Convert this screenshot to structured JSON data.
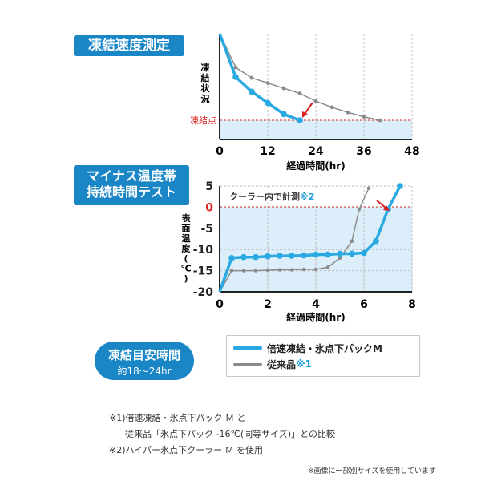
{
  "headings": {
    "chart1": "凍結速度測定",
    "chart2_line1": "マイナス温度帯",
    "chart2_line2": "持続時間テスト"
  },
  "pill": {
    "title": "凍結目安時間",
    "subtitle": "約18〜24hr"
  },
  "legend": {
    "product_m": "倍速凍結・氷点下パックM",
    "conventional": "従来品",
    "conventional_note": "※1"
  },
  "notes": {
    "n1_a": "※1)倍速凍結・氷点下パック Ｍ と",
    "n1_b": "従来品「氷点下パック -16℃(同等サイズ)」との比較",
    "n2": "※2)ハイパー氷点下クーラー Ｍ を使用",
    "small": "※画像に一部別サイズを使用しています"
  },
  "colors": {
    "accent": "#1a86c6",
    "product_line": "#29a9e1",
    "conventional_line": "#8a8a8a",
    "freeze_marker": "#d9211f",
    "band": "#dceef9"
  },
  "chart_data": [
    {
      "type": "line",
      "xlabel": "経過時間(hr)",
      "ylabel": "凍結状況",
      "x_ticks": [
        "0",
        "12",
        "24",
        "36",
        "48"
      ],
      "xlim": [
        0,
        48
      ],
      "freeze_label": "凍結点",
      "grid": true,
      "series": [
        {
          "name": "倍速凍結・氷点下パックM",
          "x": [
            0,
            4,
            8,
            12,
            16,
            20
          ],
          "y": [
            1.0,
            0.5,
            0.33,
            0.2,
            0.07,
            0.0
          ]
        },
        {
          "name": "従来品",
          "x": [
            0,
            4,
            8,
            12,
            16,
            20,
            24,
            28,
            32,
            36,
            40
          ],
          "y": [
            1.0,
            0.61,
            0.49,
            0.43,
            0.37,
            0.31,
            0.22,
            0.15,
            0.09,
            0.04,
            0.0
          ]
        }
      ]
    },
    {
      "type": "line",
      "xlabel": "経過時間(hr)",
      "ylabel": "表面温度(℃)",
      "x_ticks": [
        "0",
        "2",
        "4",
        "6",
        "8"
      ],
      "y_ticks": [
        "5",
        "0",
        "-5",
        "-10",
        "-15",
        "-20"
      ],
      "xlim": [
        0,
        8
      ],
      "ylim": [
        -20,
        5
      ],
      "annotation": "クーラー内で計測",
      "annotation_note": "※2",
      "grid": true,
      "series": [
        {
          "name": "倍速凍結・氷点下パックM",
          "x": [
            0,
            0.5,
            1,
            1.5,
            2,
            2.5,
            3,
            3.5,
            4,
            4.5,
            5,
            5.5,
            6,
            6.5,
            7,
            7.5
          ],
          "y": [
            -20,
            -12,
            -11.8,
            -11.8,
            -11.6,
            -11.5,
            -11.5,
            -11.4,
            -11.2,
            -11.2,
            -11.0,
            -11.0,
            -10.8,
            -8,
            -0.5,
            5
          ]
        },
        {
          "name": "従来品",
          "x": [
            0,
            0.5,
            1,
            1.5,
            2,
            2.5,
            3,
            3.5,
            4,
            4.5,
            5,
            5.5,
            5.8,
            6.2
          ],
          "y": [
            -20,
            -15,
            -15,
            -15,
            -14.9,
            -14.8,
            -14.8,
            -14.7,
            -14.7,
            -14.2,
            -12,
            -8,
            -0.5,
            4.5
          ]
        }
      ]
    }
  ]
}
